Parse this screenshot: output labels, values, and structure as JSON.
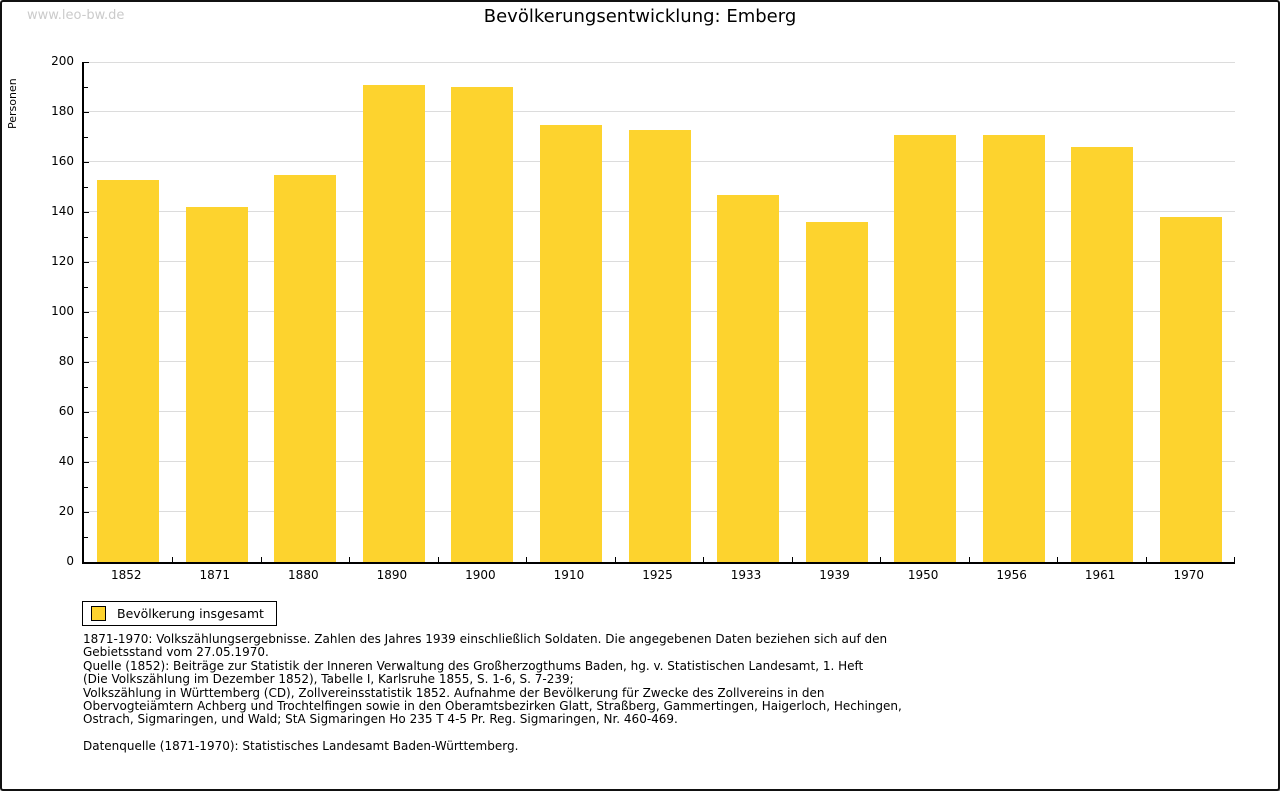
{
  "watermark": "www.leo-bw.de",
  "title": "Bevölkerungsentwicklung: Emberg",
  "chart_data": {
    "type": "bar",
    "title": "Bevölkerungsentwicklung: Emberg",
    "categories": [
      "1852",
      "1871",
      "1880",
      "1890",
      "1900",
      "1910",
      "1925",
      "1933",
      "1939",
      "1950",
      "1956",
      "1961",
      "1970"
    ],
    "values": [
      153,
      142,
      155,
      191,
      190,
      175,
      173,
      147,
      136,
      171,
      171,
      166,
      138
    ],
    "series_name": "Bevölkerung insgesamt",
    "xlabel": "",
    "ylabel": "Personen",
    "ylim": [
      0,
      200
    ],
    "ytick_step": 20,
    "yminor_step": 10,
    "grid": true,
    "legend_position": "bottom-left",
    "bar_color": "#FDD32E",
    "gridline_color": "#dcdcdc"
  },
  "legend": {
    "label": "Bevölkerung insgesamt",
    "swatch_color": "#FDD32E"
  },
  "footnotes": {
    "source_lines": [
      "1871-1970: Volkszählungsergebnisse. Zahlen des Jahres 1939 einschließlich Soldaten. Die angegebenen Daten beziehen sich auf den",
      "Gebietsstand vom 27.05.1970.",
      "Quelle (1852): Beiträge zur Statistik der Inneren Verwaltung des Großherzogthums Baden, hg. v. Statistischen Landesamt, 1. Heft",
      "(Die Volkszählung im Dezember 1852), Tabelle I, Karlsruhe 1855, S. 1-6, S. 7-239;",
      "Volkszählung in Württemberg (CD), Zollvereinsstatistik 1852. Aufnahme der Bevölkerung für Zwecke des Zollvereins in den",
      "Obervogteiämtern Achberg und Trochtelfingen sowie in den Oberamtsbezirken Glatt, Straßberg, Gammertingen, Haigerloch, Hechingen,",
      "Ostrach, Sigmaringen, und Wald; StA Sigmaringen Ho 235 T 4-5 Pr. Reg. Sigmaringen, Nr. 460-469."
    ],
    "data_source_line": "Datenquelle (1871-1970): Statistisches Landesamt Baden-Württemberg."
  }
}
